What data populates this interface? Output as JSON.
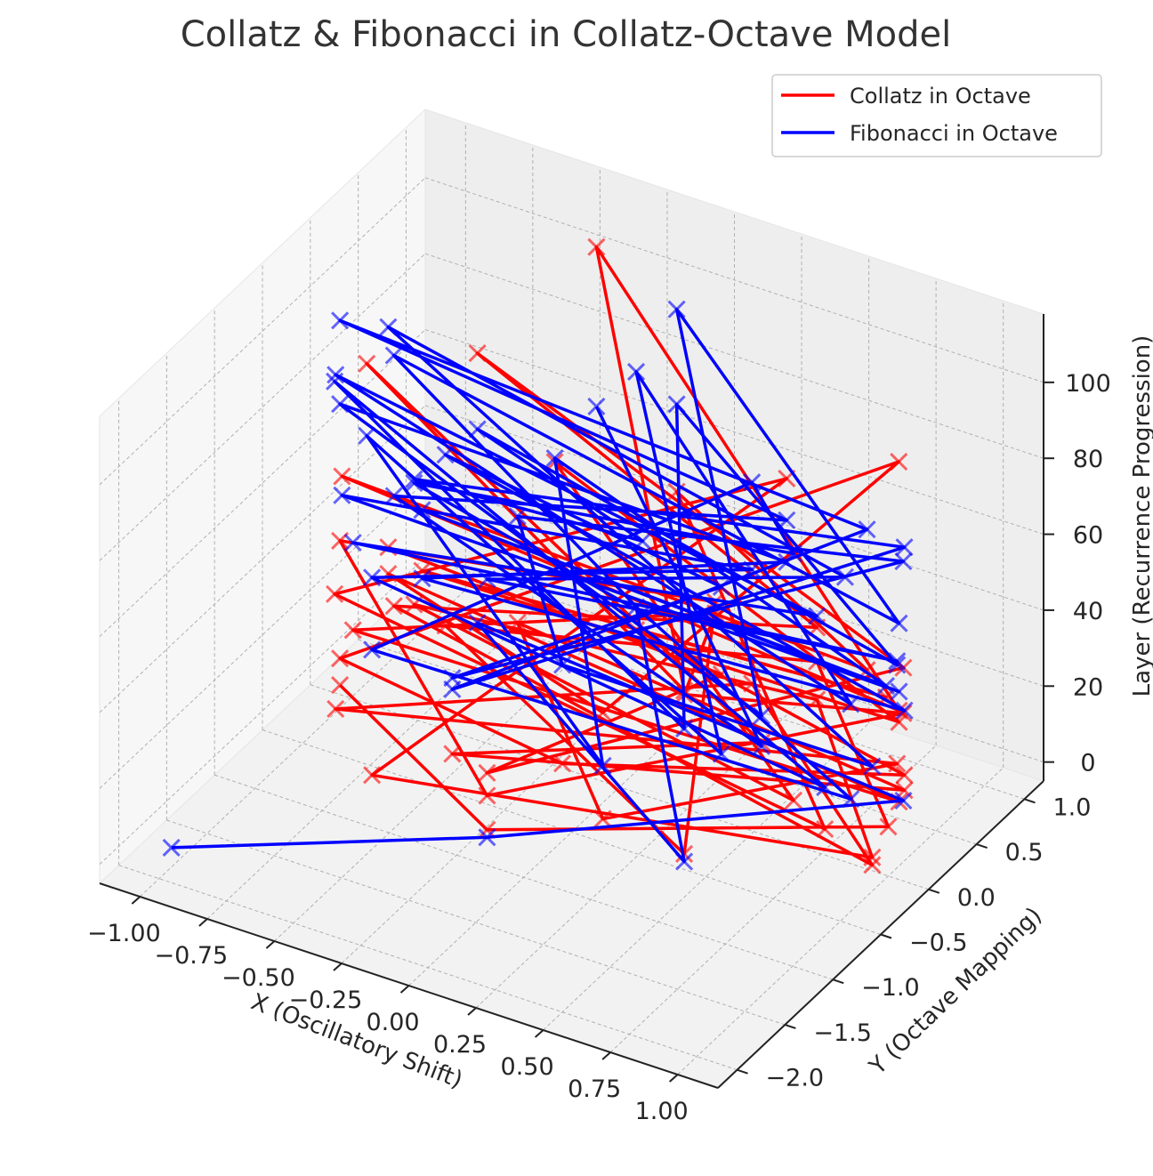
{
  "chart_data": {
    "type": "line",
    "title": "Collatz & Fibonacci in Collatz-Octave Model",
    "xlabel": "X (Oscillatory Shift)",
    "ylabel": "Y (Octave Mapping)",
    "zlabel": "Layer (Recurrence Progression)",
    "xlim": [
      -1.15,
      1.15
    ],
    "ylim": [
      -2.2,
      1.2
    ],
    "zlim": [
      -5,
      118
    ],
    "x_ticks": [
      "−1.00",
      "−0.75",
      "−0.50",
      "−0.25",
      "0.00",
      "0.25",
      "0.50",
      "0.75",
      "1.00"
    ],
    "y_ticks": [
      "−2.0",
      "−1.5",
      "−1.0",
      "−0.5",
      "0.0",
      "0.5",
      "1.0"
    ],
    "z_ticks": [
      "0",
      "20",
      "40",
      "60",
      "80",
      "100"
    ],
    "grid": true,
    "marker": "x",
    "legend_position": "top-right",
    "series": [
      {
        "name": "Collatz in Octave",
        "color": "#ff0000",
        "points": [
          [
            -0.99,
            -0.14,
            2
          ],
          [
            -0.14,
            -0.99,
            4
          ],
          [
            1.0,
            0.0,
            8
          ],
          [
            0.41,
            0.91,
            16
          ],
          [
            -0.84,
            0.54,
            5
          ],
          [
            0.54,
            -0.84,
            10
          ],
          [
            0.0,
            1.0,
            20
          ],
          [
            -0.99,
            -0.14,
            40
          ],
          [
            -0.14,
            -0.99,
            13
          ],
          [
            0.91,
            0.41,
            26
          ],
          [
            0.54,
            -0.84,
            52
          ],
          [
            0.0,
            1.0,
            17
          ],
          [
            -0.76,
            -0.65,
            34
          ],
          [
            0.99,
            0.14,
            11
          ],
          [
            -0.96,
            0.28,
            22
          ],
          [
            0.28,
            -0.96,
            44
          ],
          [
            0.85,
            0.53,
            88
          ],
          [
            -0.99,
            -0.14,
            9
          ],
          [
            0.14,
            -0.99,
            28
          ],
          [
            0.96,
            0.28,
            14
          ],
          [
            -0.28,
            0.96,
            7
          ],
          [
            0.76,
            0.65,
            21
          ],
          [
            -0.41,
            -0.91,
            64
          ],
          [
            0.99,
            0.14,
            32
          ],
          [
            -0.54,
            0.84,
            48
          ],
          [
            0.84,
            -0.54,
            24
          ],
          [
            -0.91,
            0.41,
            12
          ],
          [
            0.41,
            0.91,
            6
          ],
          [
            0.99,
            -0.14,
            3
          ],
          [
            -0.65,
            -0.76,
            1
          ],
          [
            0.28,
            0.96,
            60
          ],
          [
            -0.96,
            -0.28,
            30
          ],
          [
            0.91,
            -0.41,
            15
          ],
          [
            -0.14,
            0.99,
            46
          ],
          [
            0.65,
            0.76,
            23
          ],
          [
            -0.84,
            -0.54,
            70
          ],
          [
            0.99,
            0.14,
            35
          ],
          [
            -0.41,
            0.91,
            106
          ],
          [
            0.54,
            -0.84,
            53
          ],
          [
            -0.99,
            0.14,
            80
          ],
          [
            0.76,
            -0.65,
            40
          ],
          [
            -0.28,
            -0.96,
            20
          ],
          [
            0.96,
            0.28,
            10
          ],
          [
            -0.65,
            0.76,
            5
          ],
          [
            0.28,
            -0.96,
            16
          ],
          [
            0.84,
            0.54,
            8
          ],
          [
            -0.91,
            -0.41,
            4
          ],
          [
            0.14,
            0.99,
            2
          ],
          [
            0.99,
            -0.14,
            1
          ],
          [
            -0.54,
            -0.84,
            50
          ],
          [
            0.41,
            0.91,
            25
          ],
          [
            -0.76,
            0.65,
            76
          ],
          [
            0.91,
            0.41,
            38
          ],
          [
            -0.14,
            -0.99,
            19
          ],
          [
            0.65,
            -0.76,
            58
          ],
          [
            -0.96,
            0.28,
            29
          ]
        ]
      },
      {
        "name": "Fibonacci in Octave",
        "color": "#0000ff",
        "points": [
          [
            -0.99,
            -1.9,
            1
          ],
          [
            -0.14,
            -0.99,
            2
          ],
          [
            0.91,
            0.41,
            3
          ],
          [
            -0.76,
            0.65,
            5
          ],
          [
            0.54,
            -0.84,
            8
          ],
          [
            -0.28,
            0.96,
            13
          ],
          [
            0.96,
            -0.28,
            21
          ],
          [
            -0.65,
            -0.76,
            34
          ],
          [
            0.14,
            0.99,
            55
          ],
          [
            0.84,
            -0.54,
            89
          ],
          [
            -0.91,
            0.41,
            44
          ],
          [
            0.41,
            -0.91,
            72
          ],
          [
            -0.54,
            -0.84,
            116
          ],
          [
            0.99,
            0.14,
            58
          ],
          [
            -0.14,
            0.99,
            94
          ],
          [
            0.76,
            -0.65,
            47
          ],
          [
            -0.99,
            -0.14,
            76
          ],
          [
            0.28,
            0.96,
            38
          ],
          [
            -0.41,
            -0.91,
            62
          ],
          [
            0.96,
            0.28,
            31
          ],
          [
            -0.84,
            0.54,
            50
          ],
          [
            0.65,
            -0.76,
            81
          ],
          [
            -0.28,
            -0.96,
            40
          ],
          [
            0.91,
            0.41,
            66
          ],
          [
            -0.65,
            0.76,
            33
          ],
          [
            0.14,
            -0.99,
            54
          ],
          [
            0.99,
            -0.14,
            27
          ],
          [
            -0.96,
            0.28,
            87
          ],
          [
            0.54,
            0.84,
            43
          ],
          [
            -0.14,
            -0.99,
            70
          ],
          [
            0.84,
            0.54,
            35
          ],
          [
            -0.76,
            -0.65,
            57
          ],
          [
            0.41,
            0.91,
            28
          ],
          [
            -0.91,
            -0.41,
            92
          ],
          [
            0.96,
            -0.28,
            46
          ],
          [
            -0.28,
            0.96,
            75
          ],
          [
            0.65,
            -0.76,
            37
          ],
          [
            -0.99,
            0.14,
            61
          ],
          [
            0.28,
            -0.96,
            30
          ],
          [
            -0.54,
            0.84,
            49
          ],
          [
            0.76,
            0.65,
            24
          ],
          [
            -0.41,
            -0.91,
            80
          ],
          [
            0.99,
            0.14,
            40
          ],
          [
            -0.84,
            -0.54,
            65
          ],
          [
            0.14,
            0.99,
            32
          ],
          [
            -0.65,
            -0.76,
            53
          ],
          [
            0.91,
            -0.41,
            26
          ],
          [
            -0.96,
            -0.28,
            86
          ],
          [
            0.54,
            -0.84,
            43
          ],
          [
            -0.14,
            0.99,
            69
          ],
          [
            0.84,
            0.54,
            34
          ],
          [
            -0.76,
            0.65,
            56
          ],
          [
            0.41,
            -0.91,
            91
          ],
          [
            -0.91,
            0.41,
            45
          ],
          [
            0.96,
            0.28,
            74
          ],
          [
            -0.28,
            -0.96,
            37
          ],
          [
            0.65,
            0.76,
            60
          ],
          [
            -0.99,
            -0.14,
            98
          ],
          [
            0.28,
            0.96,
            49
          ],
          [
            -0.54,
            -0.84,
            79
          ],
          [
            0.76,
            -0.65,
            39
          ],
          [
            -0.41,
            0.91,
            64
          ]
        ]
      }
    ]
  }
}
